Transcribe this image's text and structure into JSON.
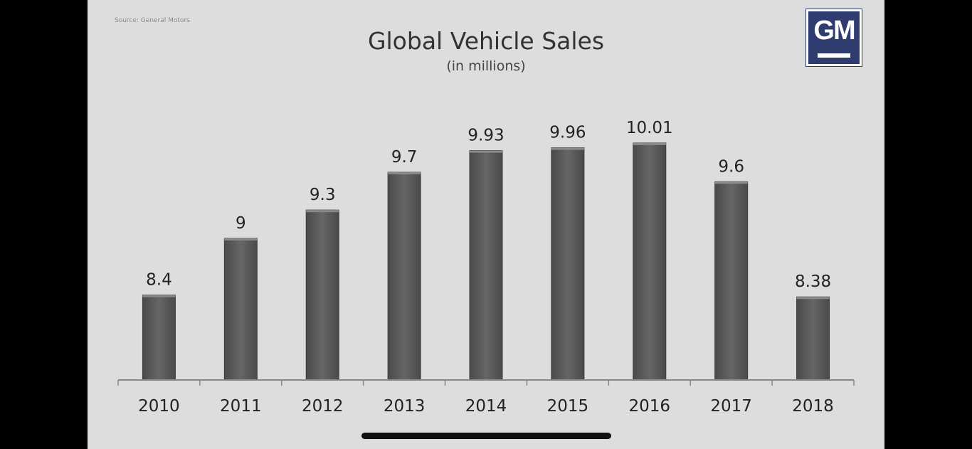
{
  "source_note": "Source: General Motors",
  "logo_text": "GM",
  "colors": {
    "slide_bg": "#dddddd",
    "bar_fill": "#5c5c5c",
    "bar_edge": "#3c3c3c",
    "text": "#222222",
    "logo_blue": "#2e3c70"
  },
  "chart_data": {
    "type": "bar",
    "title": "Global Vehicle Sales",
    "subtitle": "(in millions)",
    "categories": [
      "2010",
      "2011",
      "2012",
      "2013",
      "2014",
      "2015",
      "2016",
      "2017",
      "2018"
    ],
    "values": [
      8.4,
      9,
      9.3,
      9.7,
      9.93,
      9.96,
      10.01,
      9.6,
      8.38
    ],
    "value_labels": [
      "8.4",
      "9",
      "9.3",
      "9.7",
      "9.93",
      "9.96",
      "10.01",
      "9.6",
      "8.38"
    ],
    "xlabel": "",
    "ylabel": "",
    "ylim": [
      7.5,
      10.1
    ],
    "grid": false,
    "legend": "none"
  }
}
